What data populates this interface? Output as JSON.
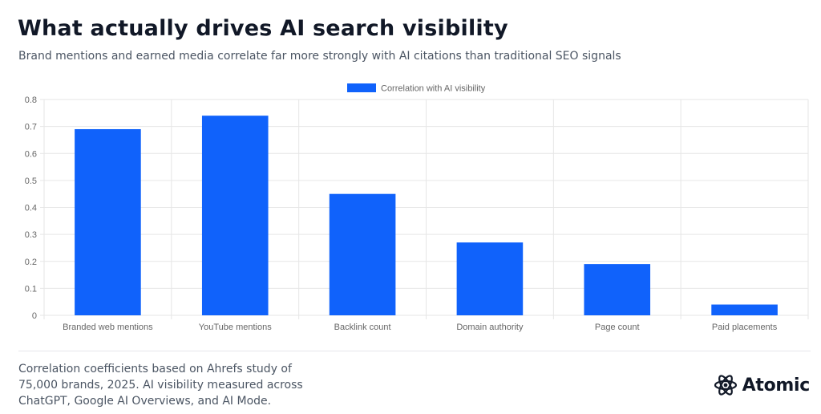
{
  "header": {
    "title": "What actually drives AI search visibility",
    "subtitle": "Brand mentions and earned media correlate far more strongly with AI citations than traditional SEO signals"
  },
  "footer": {
    "note": "Correlation coefficients based on Ahrefs study of 75,000 brands, 2025. AI visibility measured across ChatGPT, Google AI Overviews, and AI Mode.",
    "brand_name": "Atomic",
    "brand_icon": "atomic-logo-icon"
  },
  "colors": {
    "bar": "#1062fb",
    "grid": "#e6e6e6",
    "axis_text": "#666666"
  },
  "chart_data": {
    "type": "bar",
    "categories": [
      "Branded web mentions",
      "YouTube mentions",
      "Backlink count",
      "Domain authority",
      "Page count",
      "Paid placements"
    ],
    "series": [
      {
        "name": "Correlation with AI visibility",
        "values": [
          0.69,
          0.74,
          0.45,
          0.27,
          0.19,
          0.04
        ]
      }
    ],
    "yticks": [
      "0",
      "0.1",
      "0.2",
      "0.3",
      "0.4",
      "0.5",
      "0.6",
      "0.7",
      "0.8"
    ],
    "ylim": [
      0,
      0.8
    ],
    "xlabel": "",
    "ylabel": "",
    "grid": true,
    "legend": "top-center"
  }
}
